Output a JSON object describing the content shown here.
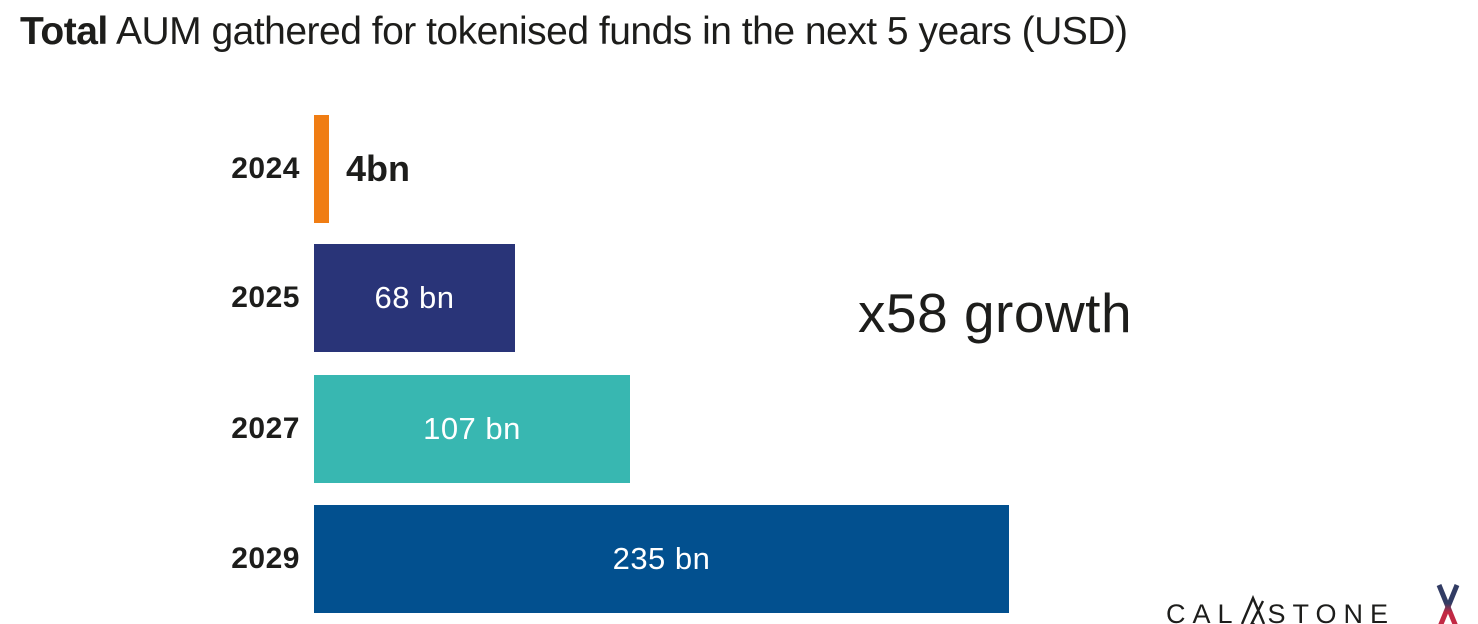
{
  "title": {
    "bold": "Total",
    "rest": " AUM gathered for tokenised funds in the next 5 years (USD)"
  },
  "annotation": {
    "text": "x58 growth"
  },
  "logo": {
    "wordmark": "CALASTONE",
    "wordmark_left": "CAL",
    "wordmark_right": "STONE",
    "x_mark_top_color": "#323c64",
    "x_mark_bottom_color": "#c22944"
  },
  "colors": {
    "background": "#ffffff",
    "text": "#1d1d1b",
    "bar_label_inside": "#ffffff"
  },
  "chart_data": {
    "type": "bar",
    "orientation": "horizontal",
    "title": "Total AUM gathered for tokenised funds in the next 5 years (USD)",
    "categories": [
      "2024",
      "2025",
      "2027",
      "2029"
    ],
    "values": [
      4,
      68,
      107,
      235
    ],
    "value_labels": [
      "4bn",
      "68 bn",
      "107 bn",
      "235 bn"
    ],
    "unit": "bn USD",
    "bar_colors": [
      "#f07d13",
      "#293478",
      "#38b7b1",
      "#02508f"
    ],
    "label_placement": [
      "outside",
      "inside",
      "inside",
      "inside"
    ],
    "xlim": [
      0,
      235
    ],
    "grid": false,
    "legend": false,
    "annotation": "x58 growth"
  }
}
